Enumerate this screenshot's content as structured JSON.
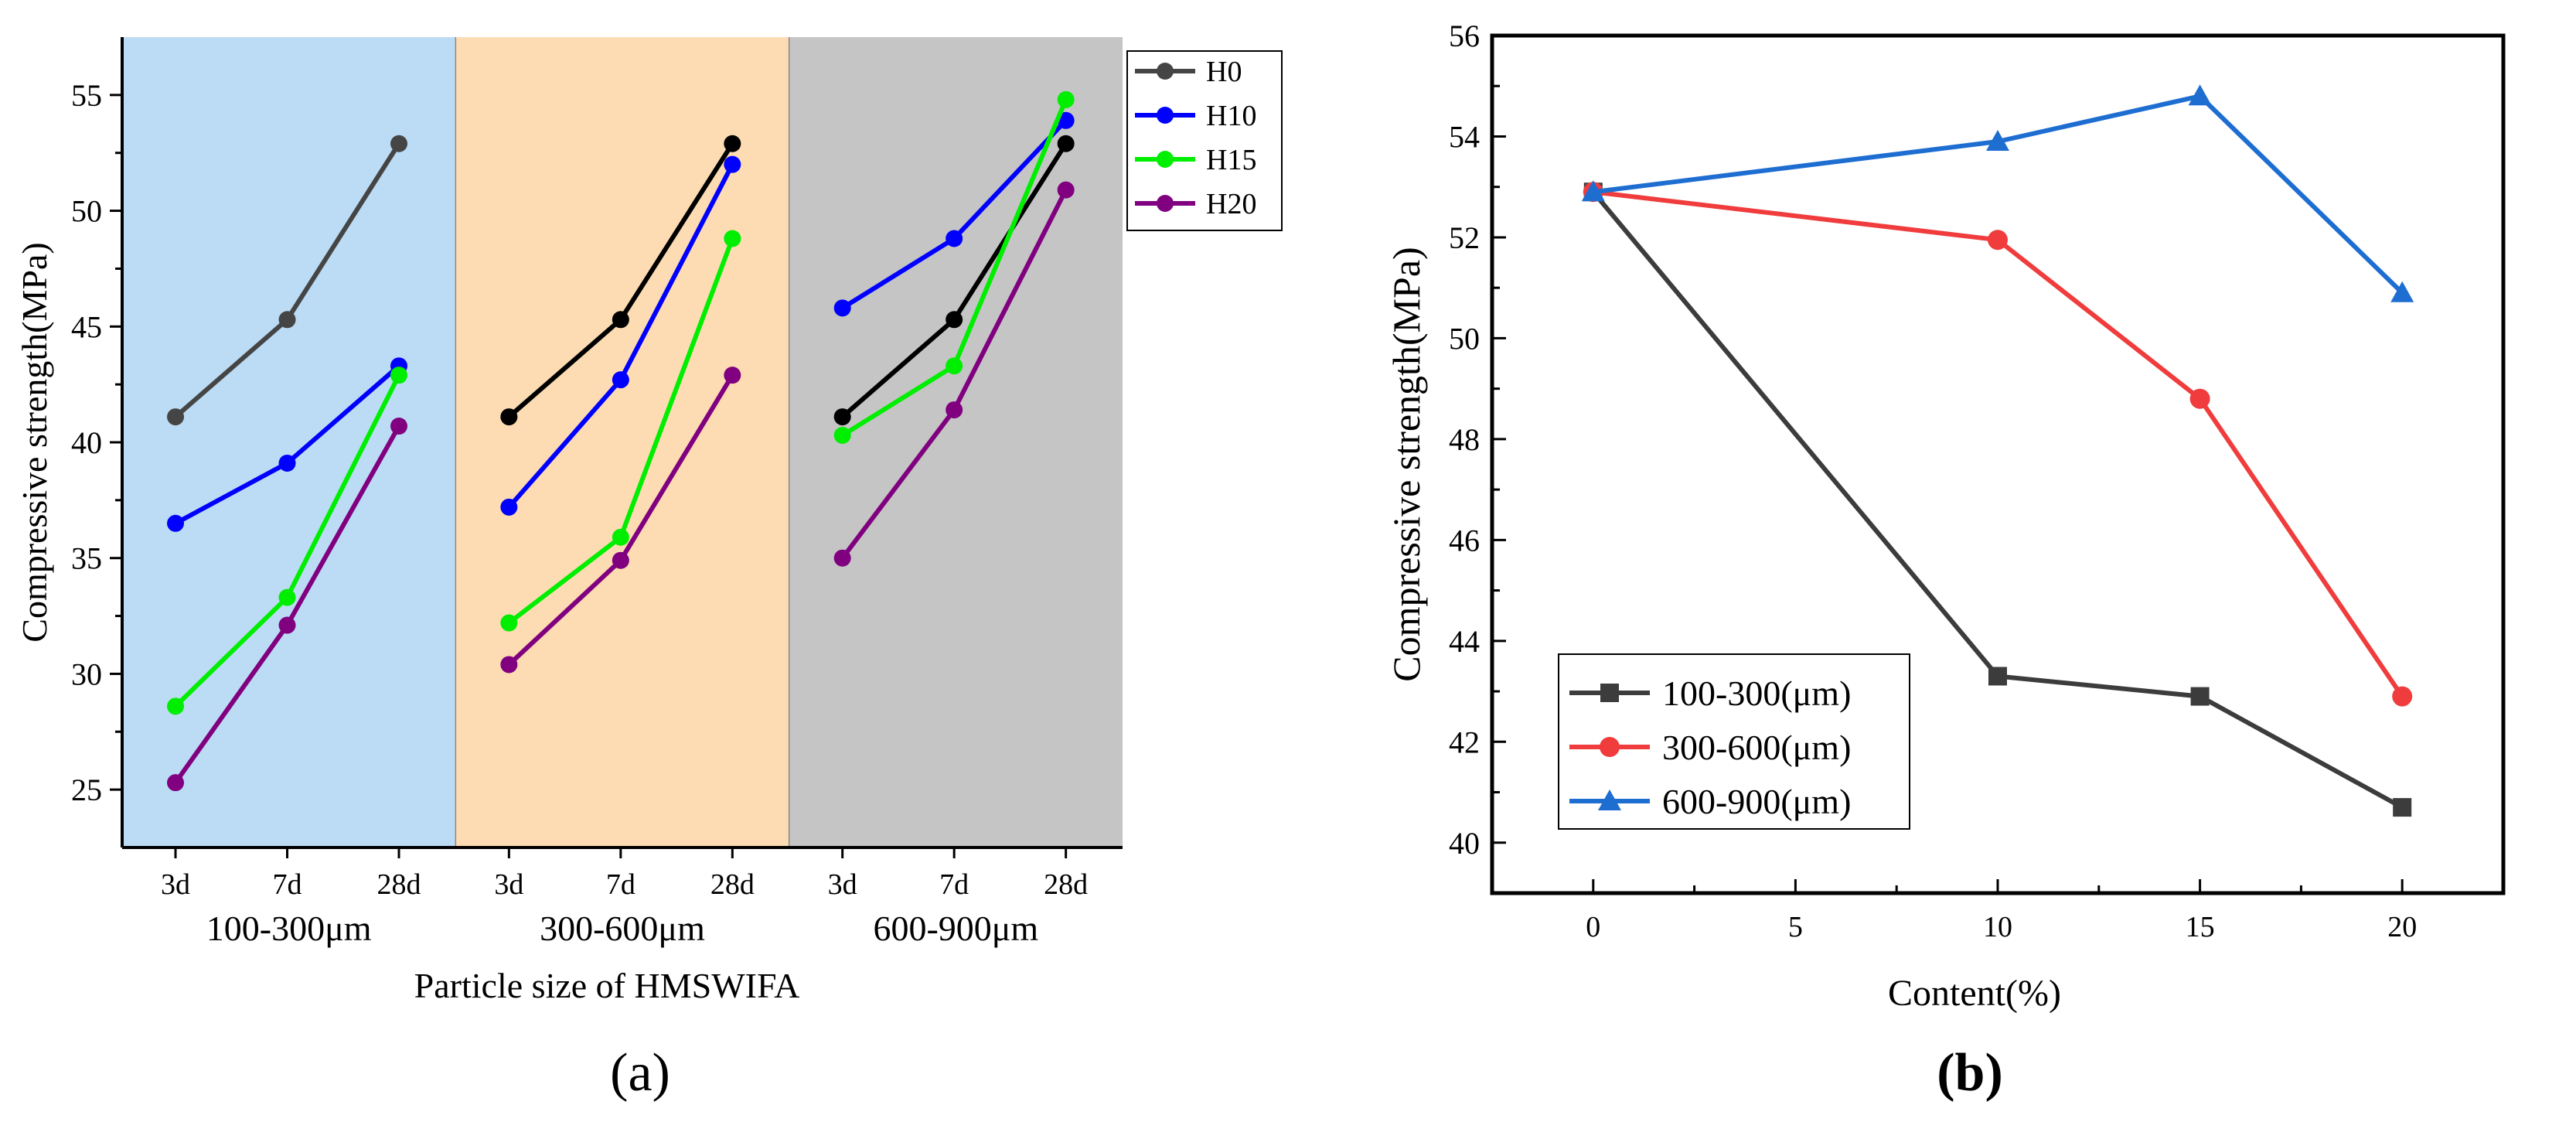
{
  "chart_data": [
    {
      "panel_label": "(a)",
      "type": "line",
      "ylabel": "Compressive strength(MPa)",
      "xlabel": "Particle size of HMSWIFA",
      "ylim": [
        22.5,
        57.5
      ],
      "yticks": [
        25,
        30,
        35,
        40,
        45,
        50,
        55
      ],
      "groups": [
        {
          "name": "100-300μm",
          "color": "#bcdcf5",
          "categories": [
            "3d",
            "7d",
            "28d"
          ]
        },
        {
          "name": "300-600μm",
          "color": "#fddcb3",
          "categories": [
            "3d",
            "7d",
            "28d"
          ]
        },
        {
          "name": "600-900μm",
          "color": "#c5c5c5",
          "categories": [
            "3d",
            "7d",
            "28d"
          ]
        }
      ],
      "legend": "top-right",
      "series": [
        {
          "name": "H0",
          "color": "#454545",
          "group_colors": [
            "#454545",
            "#000000",
            "#000000"
          ],
          "values": [
            [
              41.1,
              45.3,
              52.9
            ],
            [
              41.1,
              45.3,
              52.9
            ],
            [
              41.1,
              45.3,
              52.9
            ]
          ]
        },
        {
          "name": "H10",
          "color": "#0000ff",
          "group_colors": [
            "#0000ff",
            "#0000ff",
            "#0000ff"
          ],
          "values": [
            [
              36.5,
              39.1,
              43.3
            ],
            [
              37.2,
              42.7,
              52.0
            ],
            [
              45.8,
              48.8,
              53.9
            ]
          ]
        },
        {
          "name": "H15",
          "color": "#00ee00",
          "group_colors": [
            "#00ee00",
            "#00ee00",
            "#00ee00"
          ],
          "values": [
            [
              28.6,
              33.3,
              42.9
            ],
            [
              32.2,
              35.9,
              48.8
            ],
            [
              40.3,
              43.3,
              54.8
            ]
          ]
        },
        {
          "name": "H20",
          "color": "#800080",
          "group_colors": [
            "#800080",
            "#800080",
            "#800080"
          ],
          "values": [
            [
              25.3,
              32.1,
              40.7
            ],
            [
              30.4,
              34.9,
              42.9
            ],
            [
              35.0,
              41.4,
              50.9
            ]
          ]
        }
      ]
    },
    {
      "panel_label": "(b)",
      "type": "line",
      "xlabel": "Content(%)",
      "ylabel": "Compressive strength(MPa)",
      "xlim": [
        -2.5,
        22.5
      ],
      "ylim": [
        39,
        56
      ],
      "xticks": [
        0,
        5,
        10,
        15,
        20
      ],
      "yticks": [
        40,
        42,
        44,
        46,
        48,
        50,
        52,
        54,
        56
      ],
      "legend": "bottom-left",
      "series": [
        {
          "name": "100-300(μm)",
          "color": "#3c3c3c",
          "marker": "square",
          "x": [
            0,
            10,
            15,
            20
          ],
          "y": [
            52.9,
            43.3,
            42.9,
            40.7
          ]
        },
        {
          "name": "300-600(μm)",
          "color": "#f03c3c",
          "marker": "circle",
          "x": [
            0,
            10,
            15,
            20
          ],
          "y": [
            52.9,
            51.95,
            48.8,
            42.9
          ]
        },
        {
          "name": "600-900(μm)",
          "color": "#1e6ed2",
          "marker": "triangle",
          "x": [
            0,
            10,
            15,
            20
          ],
          "y": [
            52.9,
            53.9,
            54.8,
            50.9
          ]
        }
      ]
    }
  ]
}
